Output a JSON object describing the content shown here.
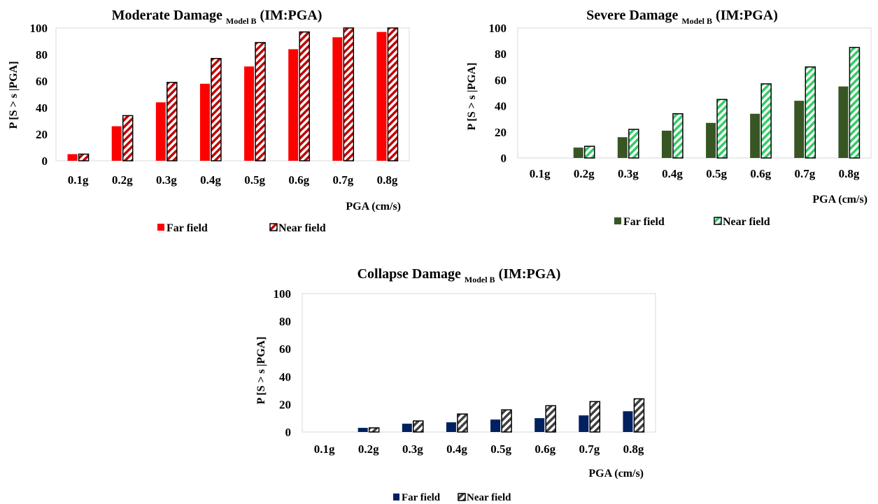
{
  "charts": [
    {
      "title_main": "Moderate Damage",
      "title_sub": "Model B",
      "title_suffix": "(IM:PGA)",
      "xlabel": "PGA (cm/s)",
      "ylabel": "P [S > s |PGA]",
      "legend_far": "Far field",
      "legend_near": "Near field"
    },
    {
      "title_main": "Severe Damage",
      "title_sub": "Model B",
      "title_suffix": "(IM:PGA)",
      "xlabel": "PGA (cm/s)",
      "ylabel": "P [S > s |PGA]",
      "legend_far": "Far field",
      "legend_near": "Near field"
    },
    {
      "title_main": "Collapse Damage",
      "title_sub": "Model B",
      "title_suffix": "(IM:PGA)",
      "xlabel": "PGA (cm/s)",
      "ylabel": "P [S > s |PGA]",
      "legend_far": "Far field",
      "legend_near": "Near field"
    }
  ],
  "chart_data": [
    {
      "type": "bar",
      "title": "Moderate Damage Model B (IM:PGA)",
      "xlabel": "PGA (cm/s)",
      "ylabel": "P [S > s |PGA]",
      "ylim": [
        0,
        100
      ],
      "yticks": [
        0,
        20,
        40,
        60,
        80,
        100
      ],
      "categories": [
        "0.1g",
        "0.2g",
        "0.3g",
        "0.4g",
        "0.5g",
        "0.6g",
        "0.7g",
        "0.8g"
      ],
      "grid": false,
      "legend_position": "bottom",
      "series": [
        {
          "name": "Far field",
          "values": [
            5,
            26,
            44,
            58,
            71,
            84,
            93,
            97
          ],
          "color": "#ff0000",
          "pattern": "solid"
        },
        {
          "name": "Near field",
          "values": [
            5,
            34,
            59,
            77,
            89,
            97,
            100,
            100
          ],
          "color": "#c00000",
          "pattern": "hatch"
        }
      ]
    },
    {
      "type": "bar",
      "title": "Severe Damage Model B (IM:PGA)",
      "xlabel": "PGA (cm/s)",
      "ylabel": "P [S > s |PGA]",
      "ylim": [
        0,
        100
      ],
      "yticks": [
        0,
        20,
        40,
        60,
        80,
        100
      ],
      "categories": [
        "0.1g",
        "0.2g",
        "0.3g",
        "0.4g",
        "0.5g",
        "0.6g",
        "0.7g",
        "0.8g"
      ],
      "grid": false,
      "legend_position": "bottom",
      "series": [
        {
          "name": "Far field",
          "values": [
            0,
            8,
            16,
            21,
            27,
            34,
            44,
            55
          ],
          "color": "#375623",
          "pattern": "solid"
        },
        {
          "name": "Near field",
          "values": [
            0,
            9,
            22,
            34,
            45,
            57,
            70,
            85
          ],
          "color": "#33cc66",
          "pattern": "hatch"
        }
      ]
    },
    {
      "type": "bar",
      "title": "Collapse Damage Model B (IM:PGA)",
      "xlabel": "PGA (cm/s)",
      "ylabel": "P [S > s |PGA]",
      "ylim": [
        0,
        100
      ],
      "yticks": [
        0,
        20,
        40,
        60,
        80,
        100
      ],
      "categories": [
        "0.1g",
        "0.2g",
        "0.3g",
        "0.4g",
        "0.5g",
        "0.6g",
        "0.7g",
        "0.8g"
      ],
      "grid": false,
      "legend_position": "bottom",
      "series": [
        {
          "name": "Far field",
          "values": [
            0,
            3,
            6,
            7,
            9,
            10,
            12,
            15
          ],
          "color": "#002060",
          "pattern": "solid"
        },
        {
          "name": "Near field",
          "values": [
            0,
            3,
            8,
            13,
            16,
            19,
            22,
            24
          ],
          "color": "#404040",
          "pattern": "hatch"
        }
      ]
    }
  ]
}
